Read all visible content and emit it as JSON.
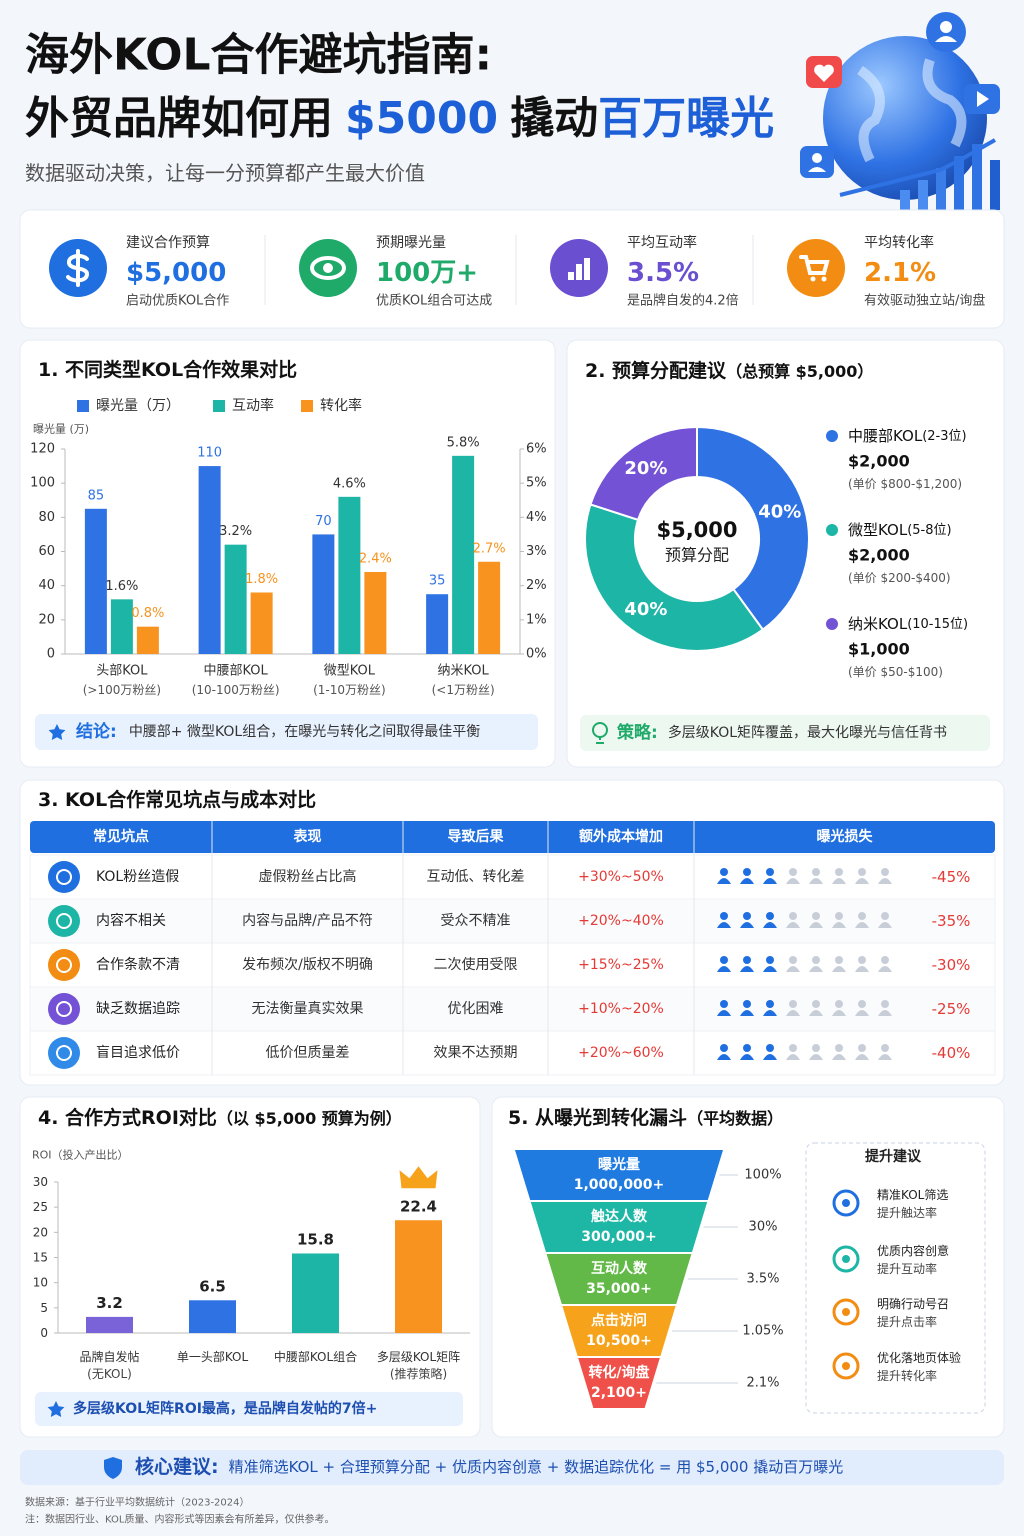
{
  "header": {
    "title": "海外KOL合作避坑指南:",
    "headline": [
      "外贸品牌如何用",
      "$5000",
      "撬动",
      "百万曝光"
    ],
    "subtitle": "数据驱动决策，让每一分预算都产生最大价值"
  },
  "kpis": [
    {
      "label": "建议合作预算",
      "value": "$5,000",
      "note": "启动优质KOL合作",
      "color": "#1f6fe0"
    },
    {
      "label": "预期曝光量",
      "value": "100万+",
      "note": "优质KOL组合可达成",
      "color": "#1faa6a"
    },
    {
      "label": "平均互动率",
      "value": "3.5%",
      "note": "是品牌自发的4.2倍",
      "color": "#6a4fd0"
    },
    {
      "label": "平均转化率",
      "value": "2.1%",
      "note": "有效驱动独立站/询盘",
      "color": "#f28c12"
    }
  ],
  "chart_data": [
    {
      "type": "bar",
      "title": "1. 不同类型KOL合作效果对比",
      "y_label": "曝光量 (万)",
      "categories": [
        "头部KOL",
        "中腰部KOL",
        "微型KOL",
        "纳米KOL"
      ],
      "category_notes": [
        "(>100万粉丝)",
        "(10-100万粉丝)",
        "(1-10万粉丝)",
        "(<1万粉丝)"
      ],
      "ylim": [
        0,
        120
      ],
      "yticks": [
        0,
        20,
        40,
        60,
        80,
        100,
        120
      ],
      "y2lim": [
        0,
        6
      ],
      "y2ticks": [
        {
          "value": 0,
          "label": "0%"
        },
        {
          "value": 1,
          "label": "1%"
        },
        {
          "value": 2,
          "label": "2%"
        },
        {
          "value": 3,
          "label": "3%"
        },
        {
          "value": 4,
          "label": "4%"
        },
        {
          "value": 5,
          "label": "5%"
        },
        {
          "value": 6,
          "label": "6%"
        }
      ],
      "legend": "top-left",
      "series": [
        {
          "name": "曝光量（万）",
          "color": "#2f72e4",
          "values": [
            85,
            110,
            70,
            35
          ]
        },
        {
          "name": "互动率",
          "color": "#1db5a6",
          "axis": "y2",
          "values": [
            1.6,
            3.2,
            4.6,
            5.8
          ],
          "value_labels": [
            "1.6%",
            "3.2%",
            "4.6%",
            "5.8%"
          ]
        },
        {
          "name": "转化率",
          "color": "#f7931e",
          "axis": "y2",
          "values": [
            0.8,
            1.8,
            2.4,
            2.7
          ],
          "value_labels": [
            "0.8%",
            "1.8%",
            "2.4%",
            "2.7%"
          ]
        }
      ],
      "conclusion": {
        "label": "结论:",
        "text": "中腰部+ 微型KOL组合，在曝光与转化之间取得最佳平衡"
      }
    },
    {
      "type": "donut",
      "title": "2. 预算分配建议",
      "subtitle": "（总预算 $5,000）",
      "center_value": "$5,000",
      "center_label": "预算分配",
      "categories": [
        "中腰部KOL",
        "微型KOL",
        "纳米KOL"
      ],
      "category_notes": [
        "(2-3位)",
        "(5-8位)",
        "(10-15位)"
      ],
      "amounts": [
        "$2,000",
        "$2,000",
        "$1,000"
      ],
      "price_notes": [
        "(单价 $800-$1,200)",
        "(单价 $200-$400)",
        "(单价 $50-$100)"
      ],
      "values": [
        40,
        40,
        20
      ],
      "value_labels": [
        "40%",
        "40%",
        "20%"
      ],
      "colors": [
        "#2f72e4",
        "#1db5a6",
        "#7352d6"
      ],
      "strategy": {
        "label": "策略:",
        "text": "多层级KOL矩阵覆盖，最大化曝光与信任背书"
      }
    },
    {
      "type": "bar",
      "title": "4. 合作方式ROI对比",
      "subtitle": "（以 $5,000 预算为例）",
      "y_label": "ROI（投入产出比）",
      "categories": [
        "品牌自发帖",
        "单一头部KOL",
        "中腰部KOL组合",
        "多层级KOL矩阵"
      ],
      "category_notes": [
        "(无KOL)",
        null,
        null,
        "(推荐策略)"
      ],
      "values": [
        3.2,
        6.5,
        15.8,
        22.4
      ],
      "colors": [
        "#7a62d8",
        "#2f72e4",
        "#1db5a6",
        "#f7931e"
      ],
      "ylim": [
        0,
        30
      ],
      "yticks": [
        0,
        5,
        10,
        15,
        20,
        25,
        30
      ],
      "conclusion": {
        "text": "多层级KOL矩阵ROI最高，是品牌自发帖的7倍+"
      }
    }
  ],
  "table": {
    "title": "3. KOL合作常见坑点与成本对比",
    "columns": [
      "常见坑点",
      "表现",
      "导致后果",
      "额外成本增加",
      "曝光损失"
    ],
    "rows": [
      [
        "KOL粉丝造假",
        "虚假粉丝占比高",
        "互动低、转化差",
        "+30%~50%",
        "-45%"
      ],
      [
        "内容不相关",
        "内容与品牌/产品不符",
        "受众不精准",
        "+20%~40%",
        "-35%"
      ],
      [
        "合作条款不清",
        "发布频次/版权不明确",
        "二次使用受限",
        "+15%~25%",
        "-30%"
      ],
      [
        "缺乏数据追踪",
        "无法衡量真实效果",
        "优化困难",
        "+10%~20%",
        "-25%"
      ],
      [
        "盲目追求低价",
        "低价但质量差",
        "效果不达预期",
        "+20%~60%",
        "-40%"
      ]
    ]
  },
  "funnel": {
    "title": "5. 从曝光到转化漏斗",
    "subtitle": "（平均数据）",
    "stages": [
      {
        "name": "曝光量",
        "value": "1,000,000+",
        "rate": "100%"
      },
      {
        "name": "触达人数",
        "value": "300,000+",
        "rate": "30%"
      },
      {
        "name": "互动人数",
        "value": "35,000+",
        "rate": "3.5%"
      },
      {
        "name": "点击访问",
        "value": "10,500+",
        "rate": "1.05%"
      },
      {
        "name": "转化/询盘",
        "value": "2,100+",
        "rate": "2.1%"
      }
    ],
    "tips_title": "提升建议",
    "tips": [
      {
        "title": "精准KOL筛选",
        "text": "提升触达率"
      },
      {
        "title": "优质内容创意",
        "text": "提升互动率"
      },
      {
        "title": "明确行动号召",
        "text": "提升点击率"
      },
      {
        "title": "优化落地页体验",
        "text": "提升转化率"
      }
    ]
  },
  "footer": {
    "label": "核心建议:",
    "text": "精准筛选KOL + 合理预算分配 + 优质内容创意 + 数据追踪优化 = 用 $5,000 撬动百万曝光",
    "source": "数据来源：基于行业平均数据统计（2023-2024）",
    "note": "注：数据因行业、KOL质量、内容形式等因素会有所差异，仅供参考。"
  }
}
